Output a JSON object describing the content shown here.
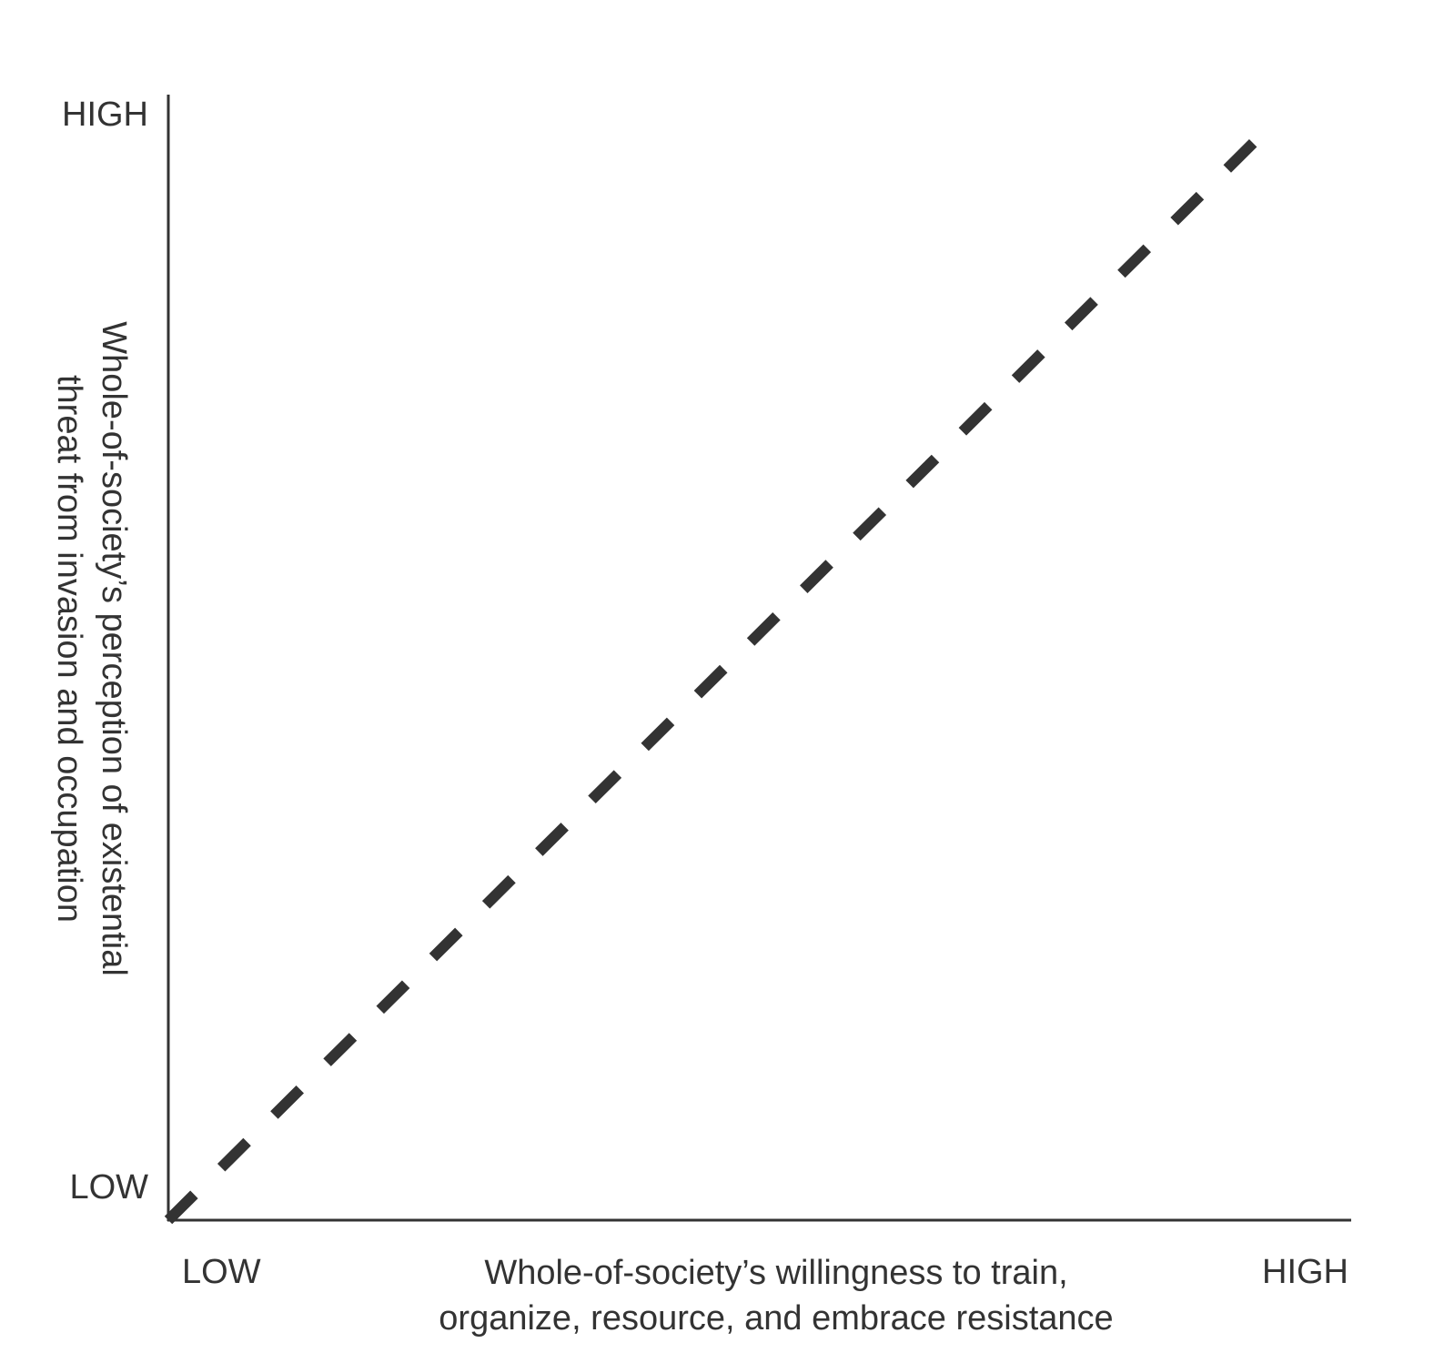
{
  "chart_data": {
    "type": "line",
    "title": "",
    "xlabel_lines": [
      "Whole-of-society’s willingness to train,",
      "organize, resource, and embrace resistance"
    ],
    "ylabel_lines": [
      "Whole-of-society’s perception of existential",
      "threat from invasion and occupation"
    ],
    "x_tick_labels": [
      "LOW",
      "HIGH"
    ],
    "y_tick_labels": [
      "LOW",
      "HIGH"
    ],
    "xlim": [
      0,
      1
    ],
    "ylim": [
      0,
      1
    ],
    "grid": false,
    "series": [
      {
        "line_style": "dashed",
        "x": [
          0,
          0.92
        ],
        "y": [
          0,
          0.96
        ]
      }
    ],
    "colors": {
      "axis": "#333333",
      "line": "#333333",
      "text": "#333333"
    }
  }
}
